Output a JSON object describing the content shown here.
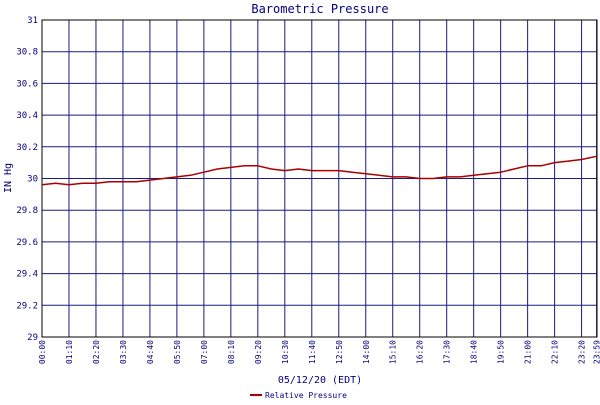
{
  "chart_data": {
    "type": "line",
    "title": "Barometric Pressure",
    "xlabel": "05/12/20 (EDT)",
    "ylabel": "IN Hg",
    "ylim": [
      29,
      31
    ],
    "yticks": [
      "31",
      "30.8",
      "30.6",
      "30.4",
      "30.2",
      "30",
      "29.8",
      "29.6",
      "29.4",
      "29.2",
      "29"
    ],
    "xlim": [
      0,
      1440
    ],
    "x_tick_labels": [
      "00:00",
      "01:10",
      "02:20",
      "03:30",
      "04:40",
      "05:50",
      "07:00",
      "08:10",
      "09:20",
      "10:30",
      "11:40",
      "12:50",
      "14:00",
      "15:10",
      "16:20",
      "17:30",
      "18:40",
      "19:50",
      "21:00",
      "22:10",
      "23:20",
      "23:59"
    ],
    "grid": true,
    "legend_position": "bottom-center",
    "series": [
      {
        "name": "Relative Pressure",
        "color": "#aa0000",
        "x": [
          0,
          35,
          70,
          105,
          140,
          175,
          210,
          245,
          280,
          315,
          350,
          385,
          420,
          455,
          490,
          525,
          560,
          595,
          630,
          665,
          700,
          735,
          770,
          805,
          840,
          875,
          910,
          945,
          980,
          1015,
          1050,
          1085,
          1120,
          1155,
          1190,
          1225,
          1260,
          1295,
          1330,
          1365,
          1400,
          1439
        ],
        "y": [
          29.96,
          29.97,
          29.96,
          29.97,
          29.97,
          29.98,
          29.98,
          29.98,
          29.99,
          30.0,
          30.01,
          30.02,
          30.04,
          30.06,
          30.07,
          30.08,
          30.08,
          30.06,
          30.05,
          30.06,
          30.05,
          30.05,
          30.05,
          30.04,
          30.03,
          30.02,
          30.01,
          30.01,
          30.0,
          30.0,
          30.01,
          30.01,
          30.02,
          30.03,
          30.04,
          30.06,
          30.08,
          30.08,
          30.1,
          30.11,
          30.12,
          30.14
        ]
      }
    ]
  }
}
